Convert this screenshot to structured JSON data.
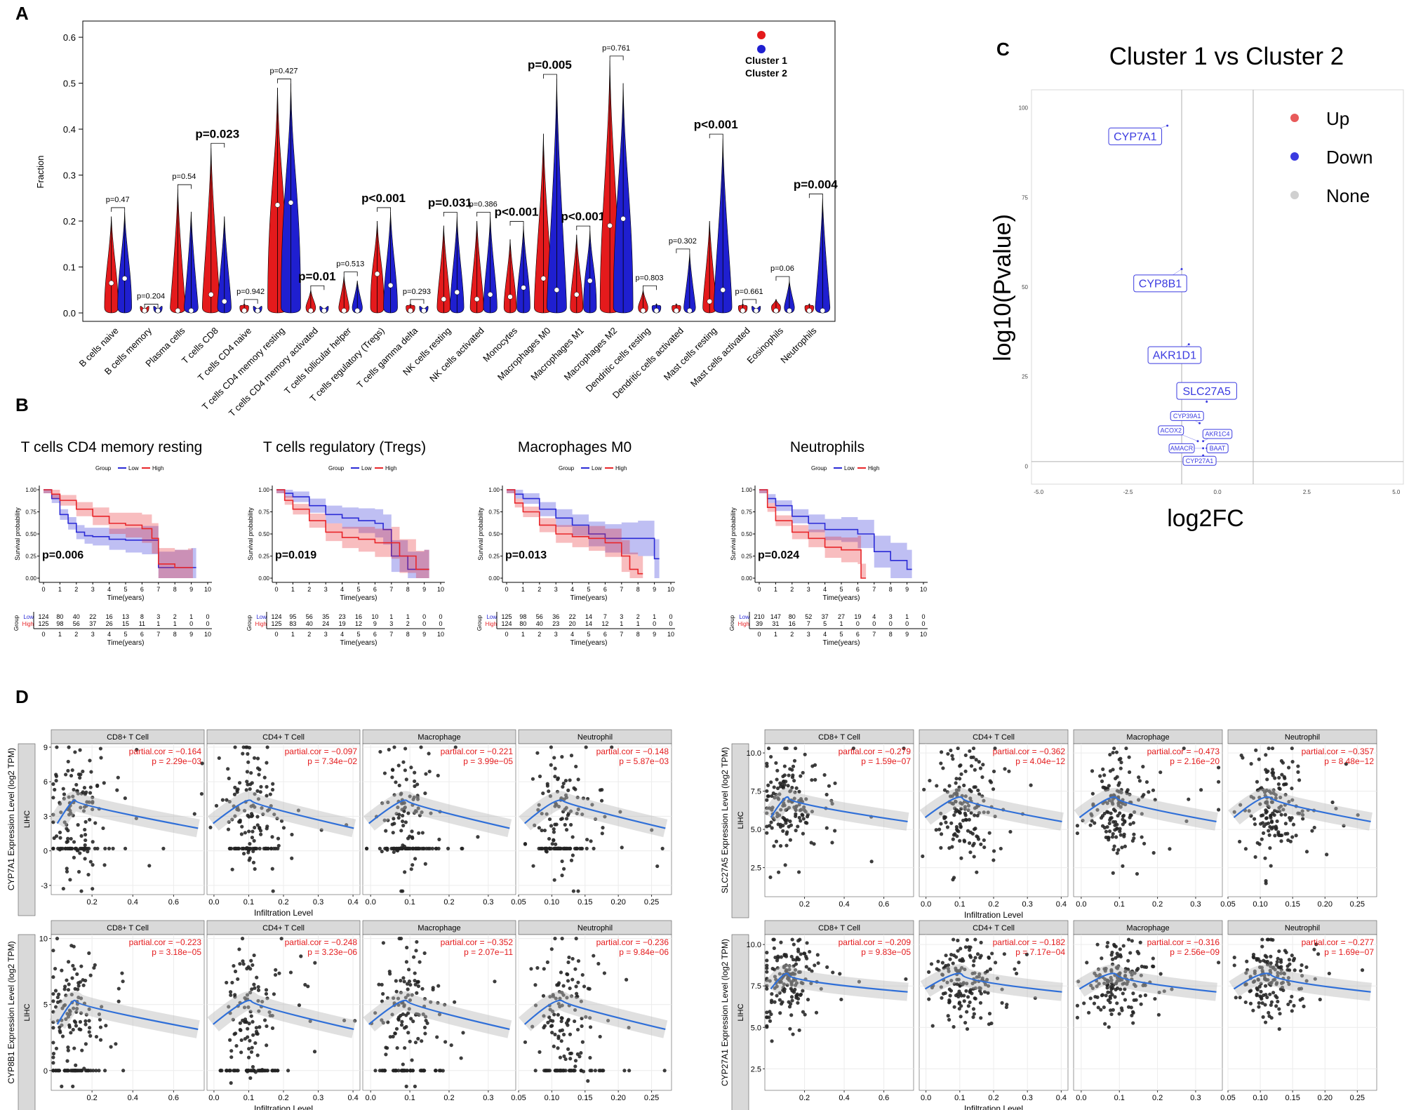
{
  "panel_letters": {
    "a": "A",
    "b": "B",
    "c": "C",
    "d": "D"
  },
  "colors": {
    "cluster1": "#e41a1c",
    "cluster2": "#1f1fd0",
    "low": "#2b2bd6",
    "high": "#e8262a",
    "up": "#e85a5a",
    "down": "#3b3be0",
    "none": "#d0d0d0",
    "smooth": "#2f6fd8"
  },
  "chart_data": [
    {
      "id": "A",
      "type": "violin",
      "ylabel": "Fraction",
      "ylim": [
        0,
        0.62
      ],
      "yticks": [
        "0.0",
        "0.1",
        "0.2",
        "0.3",
        "0.4",
        "0.5",
        "0.6"
      ],
      "legend": [
        "Cluster 1",
        "Cluster 2"
      ],
      "categories": [
        "B cells naive",
        "B cells memory",
        "Plasma cells",
        "T cells CD8",
        "T cells CD4 naive",
        "T cells CD4 memory resting",
        "T cells CD4 memory activated",
        "T cells follicular helper",
        "T cells regulatory (Tregs)",
        "T cells gamma delta",
        "NK cells resting",
        "NK cells activated",
        "Monocytes",
        "Macrophages M0",
        "Macrophages M1",
        "Macrophages M2",
        "Dendritic cells resting",
        "Dendritic cells activated",
        "Mast cells resting",
        "Mast cells activated",
        "Eosinophils",
        "Neutrophils"
      ],
      "pvalues": [
        "p=0.47",
        "p=0.204",
        "p=0.54",
        "p=0.023",
        "p=0.942",
        "p=0.427",
        "p=0.01",
        "p=0.513",
        "p<0.001",
        "p=0.293",
        "p=0.031",
        "p=0.386",
        "p<0.001",
        "p=0.005",
        "p<0.001",
        "p=0.761",
        "p=0.803",
        "p=0.302",
        "p<0.001",
        "p=0.661",
        "p=0.06",
        "p=0.004"
      ],
      "significant": [
        false,
        false,
        false,
        true,
        false,
        false,
        true,
        false,
        true,
        false,
        true,
        false,
        true,
        true,
        true,
        false,
        false,
        false,
        true,
        false,
        false,
        true
      ],
      "cluster1_max": [
        0.21,
        0.01,
        0.27,
        0.36,
        0.02,
        0.49,
        0.05,
        0.08,
        0.2,
        0.02,
        0.19,
        0.2,
        0.16,
        0.39,
        0.17,
        0.55,
        0.05,
        0.02,
        0.2,
        0.02,
        0.03,
        0.02
      ],
      "cluster1_median": [
        0.065,
        0.0,
        0.0,
        0.04,
        0.0,
        0.235,
        0.0,
        0.0,
        0.085,
        0.0,
        0.03,
        0.03,
        0.035,
        0.075,
        0.04,
        0.19,
        0.0,
        0.0,
        0.025,
        0.0,
        0.0,
        0.0
      ],
      "cluster2_max": [
        0.22,
        0.01,
        0.22,
        0.21,
        0.01,
        0.5,
        0.01,
        0.07,
        0.22,
        0.01,
        0.21,
        0.21,
        0.19,
        0.51,
        0.18,
        0.5,
        0.02,
        0.13,
        0.38,
        0.01,
        0.07,
        0.25
      ],
      "cluster2_median": [
        0.075,
        0.0,
        0.0,
        0.025,
        0.0,
        0.24,
        0.0,
        0.0,
        0.06,
        0.0,
        0.045,
        0.04,
        0.055,
        0.05,
        0.07,
        0.205,
        0.0,
        0.0,
        0.05,
        0.0,
        0.0,
        0.0
      ]
    },
    {
      "id": "B",
      "type": "line",
      "xlabel": "Time(years)",
      "ylabel": "Survival probability",
      "xticks": [
        "0",
        "1",
        "2",
        "3",
        "4",
        "5",
        "6",
        "7",
        "8",
        "9",
        "10"
      ],
      "yticks": [
        "0.00",
        "0.25",
        "0.50",
        "0.75",
        "1.00"
      ],
      "group_label": "Group",
      "group_names": [
        "Low",
        "High"
      ],
      "risk_ylabel": "Group",
      "plots": [
        {
          "title": "T cells CD4 memory resting",
          "pvalue": "p=0.006",
          "low": [
            [
              0,
              1.0
            ],
            [
              0.5,
              0.9
            ],
            [
              1,
              0.72
            ],
            [
              1.5,
              0.62
            ],
            [
              2,
              0.52
            ],
            [
              2.5,
              0.48
            ],
            [
              3,
              0.47
            ],
            [
              4,
              0.44
            ],
            [
              5,
              0.43
            ],
            [
              6,
              0.43
            ],
            [
              7,
              0.12
            ],
            [
              8,
              0.12
            ],
            [
              9,
              0.12
            ]
          ],
          "high": [
            [
              0,
              1.0
            ],
            [
              0.5,
              0.95
            ],
            [
              1,
              0.88
            ],
            [
              2,
              0.78
            ],
            [
              3,
              0.7
            ],
            [
              4,
              0.62
            ],
            [
              5,
              0.6
            ],
            [
              6,
              0.56
            ],
            [
              6.6,
              0.45
            ],
            [
              7,
              0.16
            ],
            [
              8,
              0.12
            ],
            [
              8.8,
              0.12
            ]
          ],
          "risk_low": [
            "124",
            "80",
            "40",
            "22",
            "16",
            "13",
            "8",
            "3",
            "2",
            "1",
            "0"
          ],
          "risk_high": [
            "125",
            "98",
            "56",
            "37",
            "26",
            "15",
            "11",
            "1",
            "1",
            "0",
            "0"
          ]
        },
        {
          "title": "T cells regulatory (Tregs)",
          "pvalue": "p=0.019",
          "low": [
            [
              0,
              1.0
            ],
            [
              0.5,
              0.96
            ],
            [
              1,
              0.92
            ],
            [
              2,
              0.82
            ],
            [
              3,
              0.72
            ],
            [
              4,
              0.68
            ],
            [
              5,
              0.65
            ],
            [
              6,
              0.62
            ],
            [
              6.5,
              0.55
            ],
            [
              7,
              0.25
            ],
            [
              8,
              0.1
            ],
            [
              9,
              0.1
            ]
          ],
          "high": [
            [
              0,
              1.0
            ],
            [
              0.5,
              0.88
            ],
            [
              1,
              0.78
            ],
            [
              2,
              0.65
            ],
            [
              3,
              0.52
            ],
            [
              4,
              0.46
            ],
            [
              5,
              0.44
            ],
            [
              6,
              0.4
            ],
            [
              7,
              0.4
            ],
            [
              7.5,
              0.25
            ],
            [
              8.5,
              0.1
            ],
            [
              9,
              0.1
            ]
          ],
          "risk_low": [
            "124",
            "95",
            "56",
            "35",
            "23",
            "16",
            "10",
            "1",
            "1",
            "0",
            "0"
          ],
          "risk_high": [
            "125",
            "83",
            "40",
            "24",
            "19",
            "12",
            "9",
            "3",
            "2",
            "0",
            "0"
          ]
        },
        {
          "title": "Macrophages M0",
          "pvalue": "p=0.013",
          "low": [
            [
              0,
              1.0
            ],
            [
              0.5,
              0.95
            ],
            [
              1,
              0.9
            ],
            [
              2,
              0.78
            ],
            [
              3,
              0.68
            ],
            [
              4,
              0.6
            ],
            [
              5,
              0.5
            ],
            [
              6,
              0.45
            ],
            [
              7,
              0.45
            ],
            [
              8,
              0.45
            ],
            [
              9,
              0.22
            ]
          ],
          "high": [
            [
              0,
              1.0
            ],
            [
              0.5,
              0.85
            ],
            [
              1,
              0.75
            ],
            [
              2,
              0.6
            ],
            [
              3,
              0.5
            ],
            [
              4,
              0.47
            ],
            [
              5,
              0.45
            ],
            [
              6,
              0.4
            ],
            [
              7,
              0.25
            ],
            [
              7.5,
              0.1
            ],
            [
              8,
              0.05
            ]
          ],
          "risk_low": [
            "125",
            "98",
            "56",
            "36",
            "22",
            "14",
            "7",
            "3",
            "2",
            "1",
            "0"
          ],
          "risk_high": [
            "124",
            "80",
            "40",
            "23",
            "20",
            "14",
            "12",
            "1",
            "1",
            "0",
            "0"
          ]
        },
        {
          "title": "Neutrophils",
          "pvalue": "p=0.024",
          "low": [
            [
              0,
              1.0
            ],
            [
              0.5,
              0.9
            ],
            [
              1,
              0.82
            ],
            [
              2,
              0.7
            ],
            [
              3,
              0.62
            ],
            [
              4,
              0.55
            ],
            [
              5,
              0.55
            ],
            [
              6,
              0.5
            ],
            [
              7,
              0.3
            ],
            [
              8,
              0.2
            ],
            [
              9,
              0.1
            ]
          ],
          "high": [
            [
              0,
              1.0
            ],
            [
              0.5,
              0.8
            ],
            [
              1,
              0.65
            ],
            [
              2,
              0.52
            ],
            [
              3,
              0.45
            ],
            [
              4,
              0.35
            ],
            [
              5,
              0.32
            ],
            [
              6,
              0.32
            ],
            [
              6.2,
              0.0
            ]
          ],
          "risk_low": [
            "210",
            "147",
            "80",
            "52",
            "37",
            "27",
            "19",
            "4",
            "3",
            "1",
            "0"
          ],
          "risk_high": [
            "39",
            "31",
            "16",
            "7",
            "5",
            "1",
            "0",
            "0",
            "0",
            "0",
            "0"
          ]
        }
      ]
    },
    {
      "id": "C",
      "type": "scatter",
      "title": "Cluster 1 vs Cluster 2",
      "xlabel": "log2FC",
      "ylabel": "log10(Pvalue)",
      "xticks": [
        "-5.0",
        "-2.5",
        "0.0",
        "2.5",
        "5.0"
      ],
      "yticks": [
        "0",
        "25",
        "50",
        "75",
        "100"
      ],
      "xlim": [
        -5.2,
        5.2
      ],
      "ylim": [
        -5,
        105
      ],
      "legend": [
        "Up",
        "Down",
        "None"
      ],
      "genes": [
        {
          "name": "CYP7A1",
          "x": -1.4,
          "y": 95,
          "lx": -2.3,
          "ly": 92,
          "big": true
        },
        {
          "name": "CYP8B1",
          "x": -1.0,
          "y": 55,
          "lx": -1.6,
          "ly": 51,
          "big": true
        },
        {
          "name": "AKR1D1",
          "x": -0.8,
          "y": 34,
          "lx": -1.2,
          "ly": 31,
          "big": true
        },
        {
          "name": "SLC27A5",
          "x": -0.3,
          "y": 18,
          "lx": -0.3,
          "ly": 21,
          "big": true
        },
        {
          "name": "CYP39A1",
          "x": -0.5,
          "y": 12,
          "lx": -0.85,
          "ly": 14,
          "big": false
        },
        {
          "name": "ACOX2",
          "x": -0.55,
          "y": 7,
          "lx": -1.3,
          "ly": 10,
          "big": false
        },
        {
          "name": "AKR1C4",
          "x": -0.4,
          "y": 7,
          "lx": 0.0,
          "ly": 9,
          "big": false
        },
        {
          "name": "AMACR",
          "x": -0.4,
          "y": 5,
          "lx": -1.0,
          "ly": 5,
          "big": false
        },
        {
          "name": "BAAT",
          "x": -0.3,
          "y": 5,
          "lx": 0.0,
          "ly": 5,
          "big": false
        },
        {
          "name": "CYP27A1",
          "x": -0.4,
          "y": 3,
          "lx": -0.5,
          "ly": 1.5,
          "big": false
        }
      ]
    },
    {
      "id": "D",
      "type": "scatter",
      "xlabel": "Infiltration Level",
      "strip_label": "LIHC",
      "cell_types": [
        "CD8+ T Cell",
        "CD4+ T Cell",
        "Macrophage",
        "Neutrophil"
      ],
      "groups": [
        {
          "gene": "CYP7A1",
          "ylabel": "CYP7A1 Expression Level (log2 TPM)",
          "ylim": [
            -3.8,
            9.3
          ],
          "yticks": [
            "-3",
            "0",
            "3",
            "6",
            "9"
          ],
          "ytick_values": [
            -3,
            0,
            3,
            6,
            9
          ],
          "cors": [
            {
              "r": "partial.cor = −0.164",
              "p": "p = 2.29e−03"
            },
            {
              "r": "partial.cor = −0.097",
              "p": "p = 7.34e−02"
            },
            {
              "r": "partial.cor = −0.221",
              "p": "p = 3.99e−05"
            },
            {
              "r": "partial.cor = −0.148",
              "p": "p = 5.87e−03"
            }
          ],
          "ymid": 3.5,
          "yspread": 2.8,
          "ybase": 0.2
        },
        {
          "gene": "SLC27A5",
          "ylabel": "SLC27A5 Expression Level (log2 TPM)",
          "ylim": [
            0.6,
            10.6
          ],
          "yticks": [
            "2.5",
            "5.0",
            "7.5",
            "10.0"
          ],
          "ytick_values": [
            2.5,
            5.0,
            7.5,
            10.0
          ],
          "cors": [
            {
              "r": "partial.cor = −0.279",
              "p": "p = 1.59e−07"
            },
            {
              "r": "partial.cor = −0.362",
              "p": "p = 4.04e−12"
            },
            {
              "r": "partial.cor = −0.473",
              "p": "p = 2.16e−20"
            },
            {
              "r": "partial.cor = −0.357",
              "p": "p = 8.48e−12"
            }
          ],
          "ymid": 6.5,
          "yspread": 1.8,
          "ybase": 2.0
        },
        {
          "gene": "CYP8B1",
          "ylabel": "CYP8B1 Expression Level (log2 TPM)",
          "ylim": [
            -1.5,
            10.3
          ],
          "yticks": [
            "0",
            "5",
            "10"
          ],
          "ytick_values": [
            0,
            5,
            10
          ],
          "cors": [
            {
              "r": "partial.cor = −0.223",
              "p": "p = 3.18e−05"
            },
            {
              "r": "partial.cor = −0.248",
              "p": "p = 3.23e−06"
            },
            {
              "r": "partial.cor = −0.352",
              "p": "p = 2.07e−11"
            },
            {
              "r": "partial.cor = −0.236",
              "p": "p = 9.84e−06"
            }
          ],
          "ymid": 4.5,
          "yspread": 2.5,
          "ybase": 0.0
        },
        {
          "gene": "CYP27A1",
          "ylabel": "CYP27A1 Expression Level (log2 TPM)",
          "ylim": [
            1.2,
            10.6
          ],
          "yticks": [
            "2.5",
            "5.0",
            "7.5",
            "10.0"
          ],
          "ytick_values": [
            2.5,
            5.0,
            7.5,
            10.0
          ],
          "cors": [
            {
              "r": "partial.cor = −0.209",
              "p": "p = 9.83e−05"
            },
            {
              "r": "partial.cor = −0.182",
              "p": "p = 7.17e−04"
            },
            {
              "r": "partial.cor = −0.316",
              "p": "p = 2.56e−09"
            },
            {
              "r": "partial.cor = −0.277",
              "p": "p = 1.69e−07"
            }
          ],
          "ymid": 7.8,
          "yspread": 1.2,
          "ybase": 3.0
        }
      ],
      "xaxes": [
        {
          "lim": [
            0.0,
            0.75
          ],
          "ticks": [
            "0.2",
            "0.4",
            "0.6"
          ],
          "tickvals": [
            0.2,
            0.4,
            0.6
          ]
        },
        {
          "lim": [
            -0.02,
            0.42
          ],
          "ticks": [
            "0.0",
            "0.1",
            "0.2",
            "0.3",
            "0.4"
          ],
          "tickvals": [
            0.0,
            0.1,
            0.2,
            0.3,
            0.4
          ]
        },
        {
          "lim": [
            -0.02,
            0.37
          ],
          "ticks": [
            "0.0",
            "0.1",
            "0.2",
            "0.3"
          ],
          "tickvals": [
            0.0,
            0.1,
            0.2,
            0.3
          ]
        },
        {
          "lim": [
            0.05,
            0.28
          ],
          "ticks": [
            "0.05",
            "0.10",
            "0.15",
            "0.20",
            "0.25"
          ],
          "tickvals": [
            0.05,
            0.1,
            0.15,
            0.2,
            0.25
          ]
        }
      ]
    }
  ]
}
